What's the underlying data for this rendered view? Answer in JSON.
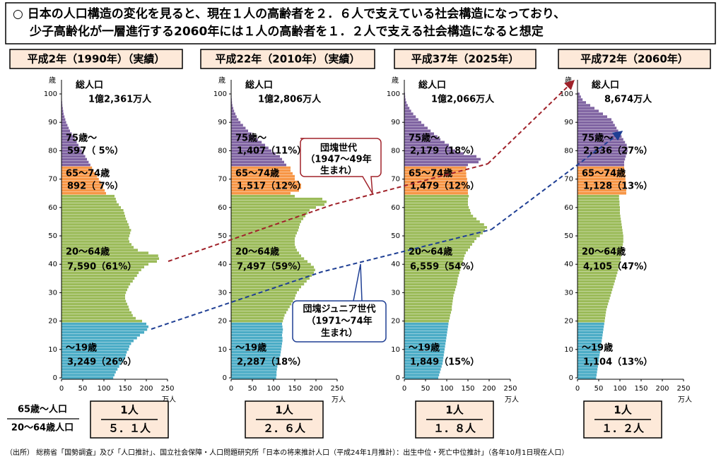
{
  "header": {
    "lines": [
      "○ 日本の人口構造の変化を見ると、現在１人の高齢者を２．６人で支えている社会構造になっており、",
      "少子高齢化が一層進行する2060年には１人の高齢者を１．２人で支える社会構造になると想定"
    ]
  },
  "chart_data": [
    {
      "type": "bar",
      "orientation": "horizontal",
      "title": "平成2年（1990年）（実績）",
      "total_label": "総人口",
      "total": "1億2,361万人",
      "ylabel": "歳",
      "xlabel": "万人",
      "xlim": [
        0,
        250
      ],
      "xticks": [
        0,
        50,
        100,
        150,
        200,
        250
      ],
      "ylim": [
        0,
        100
      ],
      "yticks": [
        0,
        10,
        20,
        30,
        40,
        50,
        60,
        70,
        80,
        90,
        100
      ],
      "series": [
        {
          "name": "～19歳",
          "value_label": "3,249（26%）",
          "color": "#4bacc6",
          "y": [
            0,
            1,
            2,
            3,
            4,
            5,
            6,
            7,
            8,
            9,
            10,
            11,
            12,
            13,
            14,
            15,
            16,
            17,
            18,
            19
          ],
          "values": [
            122,
            125,
            128,
            132,
            136,
            140,
            146,
            150,
            152,
            154,
            158,
            160,
            164,
            170,
            178,
            185,
            195,
            202,
            205,
            200
          ]
        },
        {
          "name": "20～64歳",
          "value_label": "7,590（61%）",
          "color": "#9bbb59",
          "y": [
            20,
            21,
            22,
            23,
            24,
            25,
            26,
            27,
            28,
            29,
            30,
            31,
            32,
            33,
            34,
            35,
            36,
            37,
            38,
            39,
            40,
            41,
            42,
            43,
            44,
            45,
            46,
            47,
            48,
            49,
            50,
            51,
            52,
            53,
            54,
            55,
            56,
            57,
            58,
            59,
            60,
            61,
            62,
            63,
            64
          ],
          "values": [
            190,
            175,
            168,
            165,
            160,
            158,
            155,
            152,
            150,
            150,
            152,
            155,
            158,
            162,
            168,
            172,
            178,
            182,
            188,
            195,
            205,
            225,
            230,
            228,
            205,
            180,
            170,
            165,
            160,
            158,
            160,
            162,
            164,
            160,
            158,
            155,
            152,
            150,
            148,
            146,
            140,
            135,
            130,
            128,
            125
          ]
        },
        {
          "name": "65～74歳",
          "value_label": "892（ 7%）",
          "color": "#f79646",
          "y": [
            65,
            66,
            67,
            68,
            69,
            70,
            71,
            72,
            73,
            74
          ],
          "values": [
            105,
            102,
            98,
            95,
            92,
            88,
            84,
            80,
            76,
            72
          ]
        },
        {
          "name": "75歳～",
          "value_label": "597（ 5%）",
          "color": "#8064a2",
          "y": [
            75,
            76,
            77,
            78,
            79,
            80,
            81,
            82,
            83,
            84,
            85,
            86,
            87,
            88,
            89,
            90,
            91,
            92,
            93,
            94,
            95,
            96,
            97,
            98,
            99,
            100
          ],
          "values": [
            68,
            64,
            60,
            56,
            52,
            48,
            44,
            40,
            36,
            32,
            28,
            24,
            20,
            17,
            14,
            11,
            9,
            7,
            5,
            4,
            3,
            2,
            1.5,
            1,
            0.7,
            0.5
          ]
        }
      ]
    },
    {
      "type": "bar",
      "orientation": "horizontal",
      "title": "平成22年（2010年）（実績）",
      "total_label": "総人口",
      "total": "1億2,806万人",
      "ylabel": "歳",
      "xlabel": "万人",
      "xlim": [
        0,
        250
      ],
      "xticks": [
        0,
        50,
        100,
        150,
        200,
        250
      ],
      "ylim": [
        0,
        100
      ],
      "yticks": [
        0,
        10,
        20,
        30,
        40,
        50,
        60,
        70,
        80,
        90,
        100
      ],
      "series": [
        {
          "name": "～19歳",
          "value_label": "2,287（18%）",
          "color": "#4bacc6",
          "y": [
            0,
            1,
            2,
            3,
            4,
            5,
            6,
            7,
            8,
            9,
            10,
            11,
            12,
            13,
            14,
            15,
            16,
            17,
            18,
            19
          ],
          "values": [
            106,
            107,
            107,
            108,
            109,
            110,
            112,
            114,
            116,
            117,
            118,
            119,
            120,
            121,
            121,
            120,
            121,
            122,
            121,
            120
          ]
        },
        {
          "name": "20～64歳",
          "value_label": "7,497（59%）",
          "color": "#9bbb59",
          "y": [
            20,
            21,
            22,
            23,
            24,
            25,
            26,
            27,
            28,
            29,
            30,
            31,
            32,
            33,
            34,
            35,
            36,
            37,
            38,
            39,
            40,
            41,
            42,
            43,
            44,
            45,
            46,
            47,
            48,
            49,
            50,
            51,
            52,
            53,
            54,
            55,
            56,
            57,
            58,
            59,
            60,
            61,
            62,
            63,
            64
          ],
          "values": [
            122,
            124,
            126,
            130,
            134,
            138,
            142,
            146,
            150,
            152,
            155,
            160,
            165,
            172,
            178,
            185,
            190,
            195,
            198,
            195,
            188,
            180,
            172,
            165,
            160,
            155,
            152,
            150,
            150,
            150,
            152,
            155,
            158,
            160,
            162,
            165,
            170,
            175,
            180,
            185,
            200,
            220,
            225,
            215,
            150
          ]
        },
        {
          "name": "65～74歳",
          "value_label": "1,517（12%）",
          "color": "#f79646",
          "y": [
            65,
            66,
            67,
            68,
            69,
            70,
            71,
            72,
            73,
            74
          ],
          "values": [
            140,
            160,
            165,
            165,
            160,
            150,
            150,
            145,
            140,
            140
          ]
        },
        {
          "name": "75歳～",
          "value_label": "1,407（11%）",
          "color": "#8064a2",
          "y": [
            75,
            76,
            77,
            78,
            79,
            80,
            81,
            82,
            83,
            84,
            85,
            86,
            87,
            88,
            89,
            90,
            91,
            92,
            93,
            94,
            95,
            96,
            97,
            98,
            99,
            100
          ],
          "values": [
            130,
            125,
            120,
            115,
            105,
            95,
            88,
            80,
            72,
            63,
            55,
            48,
            40,
            34,
            28,
            22,
            17,
            13,
            10,
            7,
            5,
            3,
            2,
            1.5,
            1,
            0.8
          ]
        }
      ]
    },
    {
      "type": "bar",
      "orientation": "horizontal",
      "title": "平成37年（2025年）",
      "total_label": "総人口",
      "total": "1億2,066万人",
      "ylabel": "歳",
      "xlabel": "万人",
      "xlim": [
        0,
        250
      ],
      "xticks": [
        0,
        50,
        100,
        150,
        200,
        250
      ],
      "ylim": [
        0,
        100
      ],
      "yticks": [
        0,
        10,
        20,
        30,
        40,
        50,
        60,
        70,
        80,
        90,
        100
      ],
      "series": [
        {
          "name": "～19歳",
          "value_label": "1,849（15%）",
          "color": "#4bacc6",
          "y": [
            0,
            1,
            2,
            3,
            4,
            5,
            6,
            7,
            8,
            9,
            10,
            11,
            12,
            13,
            14,
            15,
            16,
            17,
            18,
            19
          ],
          "values": [
            80,
            82,
            84,
            86,
            88,
            90,
            91,
            92,
            93,
            94,
            95,
            96,
            97,
            98,
            99,
            100,
            101,
            102,
            103,
            104
          ]
        },
        {
          "name": "20～64歳",
          "value_label": "6,559（54%）",
          "color": "#9bbb59",
          "y": [
            20,
            21,
            22,
            23,
            24,
            25,
            26,
            27,
            28,
            29,
            30,
            31,
            32,
            33,
            34,
            35,
            36,
            37,
            38,
            39,
            40,
            41,
            42,
            43,
            44,
            45,
            46,
            47,
            48,
            49,
            50,
            51,
            52,
            53,
            54,
            55,
            56,
            57,
            58,
            59,
            60,
            61,
            62,
            63,
            64
          ],
          "values": [
            105,
            107,
            108,
            110,
            112,
            112,
            113,
            114,
            115,
            116,
            118,
            120,
            122,
            124,
            125,
            126,
            128,
            130,
            132,
            134,
            136,
            138,
            140,
            142,
            145,
            150,
            155,
            160,
            165,
            170,
            178,
            185,
            190,
            195,
            188,
            178,
            170,
            162,
            157,
            155,
            152,
            150,
            150,
            150,
            152
          ]
        },
        {
          "name": "65～74歳",
          "value_label": "1,479（12%）",
          "color": "#f79646",
          "y": [
            65,
            66,
            67,
            68,
            69,
            70,
            71,
            72,
            73,
            74
          ],
          "values": [
            150,
            150,
            150,
            150,
            148,
            148,
            146,
            146,
            145,
            146
          ]
        },
        {
          "name": "75歳～",
          "value_label": "2,179（18%）",
          "color": "#8064a2",
          "y": [
            75,
            76,
            77,
            78,
            79,
            80,
            81,
            82,
            83,
            84,
            85,
            86,
            87,
            88,
            89,
            90,
            91,
            92,
            93,
            94,
            95,
            96,
            97,
            98,
            99,
            100
          ],
          "values": [
            150,
            175,
            180,
            170,
            140,
            120,
            110,
            105,
            95,
            85,
            78,
            70,
            62,
            55,
            47,
            40,
            33,
            27,
            21,
            16,
            12,
            8,
            5,
            3,
            2,
            1.5
          ]
        }
      ]
    },
    {
      "type": "bar",
      "orientation": "horizontal",
      "title": "平成72年（2060年）",
      "total_label": "総人口",
      "total": "8,674万人",
      "ylabel": "歳",
      "xlabel": "万人",
      "xlim": [
        0,
        250
      ],
      "xticks": [
        0,
        50,
        100,
        150,
        200,
        250
      ],
      "ylim": [
        0,
        100
      ],
      "yticks": [
        0,
        10,
        20,
        30,
        40,
        50,
        60,
        70,
        80,
        90,
        100
      ],
      "series": [
        {
          "name": "～19歳",
          "value_label": "1,104（13%）",
          "color": "#4bacc6",
          "y": [
            0,
            1,
            2,
            3,
            4,
            5,
            6,
            7,
            8,
            9,
            10,
            11,
            12,
            13,
            14,
            15,
            16,
            17,
            18,
            19
          ],
          "values": [
            44,
            45,
            46,
            47,
            48,
            49,
            50,
            51,
            52,
            53,
            54,
            55,
            56,
            57,
            58,
            59,
            60,
            61,
            62,
            63
          ]
        },
        {
          "name": "20～64歳",
          "value_label": "4,105（47%）",
          "color": "#9bbb59",
          "y": [
            20,
            21,
            22,
            23,
            24,
            25,
            26,
            27,
            28,
            29,
            30,
            31,
            32,
            33,
            34,
            35,
            36,
            37,
            38,
            39,
            40,
            41,
            42,
            43,
            44,
            45,
            46,
            47,
            48,
            49,
            50,
            51,
            52,
            53,
            54,
            55,
            56,
            57,
            58,
            59,
            60,
            61,
            62,
            63,
            64
          ],
          "values": [
            64,
            65,
            66,
            67,
            68,
            70,
            72,
            74,
            76,
            78,
            80,
            82,
            84,
            86,
            88,
            90,
            92,
            94,
            96,
            98,
            100,
            101,
            102,
            103,
            104,
            105,
            106,
            107,
            108,
            108,
            108,
            107,
            106,
            105,
            104,
            103,
            102,
            101,
            100,
            100,
            100,
            99,
            99,
            98,
            98
          ]
        },
        {
          "name": "65～74歳",
          "value_label": "1,128（13%）",
          "color": "#f79646",
          "y": [
            65,
            66,
            67,
            68,
            69,
            70,
            71,
            72,
            73,
            74
          ],
          "values": [
            115,
            115,
            115,
            114,
            114,
            113,
            113,
            112,
            111,
            110
          ]
        },
        {
          "name": "75歳～",
          "value_label": "2,336（27%）",
          "color": "#8064a2",
          "y": [
            75,
            76,
            77,
            78,
            79,
            80,
            81,
            82,
            83,
            84,
            85,
            86,
            87,
            88,
            89,
            90,
            91,
            92,
            93,
            94,
            95,
            96,
            97,
            98,
            99,
            100
          ],
          "values": [
            110,
            110,
            112,
            114,
            116,
            118,
            118,
            116,
            112,
            108,
            104,
            100,
            96,
            92,
            88,
            84,
            80,
            70,
            60,
            50,
            40,
            30,
            20,
            12,
            8,
            5
          ]
        }
      ]
    }
  ],
  "ratio": {
    "label_top": "65歳～人口",
    "label_bottom": "20～64歳人口",
    "items": [
      {
        "top": "1人",
        "bottom": "５．１人"
      },
      {
        "top": "1人",
        "bottom": "２．６人"
      },
      {
        "top": "1人",
        "bottom": "１．８人"
      },
      {
        "top": "1人",
        "bottom": "１．２人"
      }
    ]
  },
  "callouts": [
    {
      "lines": [
        "団塊世代",
        "（1947～49年",
        "生まれ）"
      ]
    },
    {
      "lines": [
        "団塊ジュニア世代",
        "（1971～74年",
        "生まれ）"
      ]
    }
  ],
  "footer": "（出所） 総務省「国勢調査」及び「人口推計」、国立社会保障・人口問題研究所「日本の将来推計人口（平成24年1月推計）：出生中位・死亡中位推計」（各年10月1日現在人口）"
}
